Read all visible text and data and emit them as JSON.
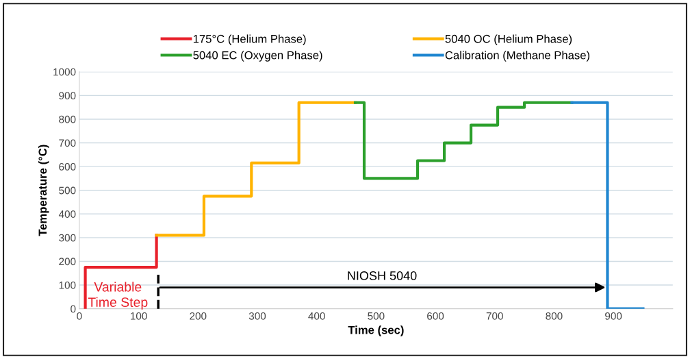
{
  "chart_data": {
    "type": "line",
    "xlabel": "Time (sec)",
    "ylabel": "Temperature (°C)",
    "series": [
      {
        "name": "175°C (Helium Phase)",
        "color": "#e8202a",
        "x": [
          10,
          10,
          130,
          130
        ],
        "values": [
          0,
          175,
          175,
          310
        ]
      },
      {
        "name": "5040 OC (Helium Phase)",
        "color": "#ffb300",
        "x": [
          130,
          210,
          210,
          290,
          290,
          370,
          370,
          465
        ],
        "values": [
          310,
          310,
          475,
          475,
          615,
          615,
          870,
          870
        ]
      },
      {
        "name": "5040 EC (Oxygen Phase)",
        "color": "#2ca02c",
        "x": [
          465,
          480,
          480,
          570,
          570,
          615,
          615,
          660,
          660,
          705,
          705,
          750,
          750,
          830
        ],
        "values": [
          870,
          870,
          550,
          550,
          625,
          625,
          700,
          700,
          775,
          775,
          850,
          850,
          870,
          870
        ]
      },
      {
        "name": "Calibration (Methane Phase)",
        "color": "#1f86d0",
        "x": [
          830,
          890,
          890,
          950
        ],
        "values": [
          870,
          870,
          0,
          0
        ]
      }
    ],
    "xlim": [
      0,
      1000
    ],
    "xticks": [
      0,
      100,
      200,
      300,
      400,
      500,
      600,
      700,
      800,
      900
    ],
    "ylim": [
      0,
      1000
    ],
    "yticks": [
      0,
      100,
      200,
      300,
      400,
      500,
      600,
      700,
      800,
      900,
      1000
    ],
    "grid": "y",
    "legend": "top",
    "line_style": "solid",
    "marker": "none",
    "ref_lines": [
      {
        "axis": "x",
        "value": 133,
        "color": "#000000",
        "line_style": "dashed"
      }
    ],
    "annotations": [
      "Variable\nTime Step",
      "NIOSH 5040"
    ]
  }
}
